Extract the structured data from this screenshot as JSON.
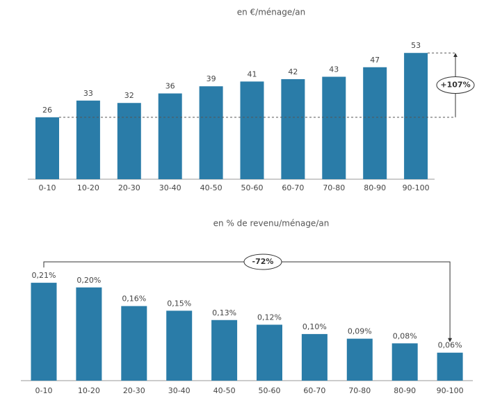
{
  "chart_data": [
    {
      "type": "bar",
      "title": "en €/ménage/an",
      "color": "#2a7ca8",
      "categories": [
        "0-10",
        "10-20",
        "20-30",
        "30-40",
        "40-50",
        "50-60",
        "60-70",
        "70-80",
        "80-90",
        "90-100"
      ],
      "values": [
        26,
        33,
        32,
        36,
        39,
        41,
        42,
        43,
        47,
        53
      ],
      "annotation": "+107%"
    },
    {
      "type": "bar",
      "title": "en % de revenu/ménage/an",
      "color": "#2a7ca8",
      "categories": [
        "0-10",
        "10-20",
        "20-30",
        "30-40",
        "40-50",
        "50-60",
        "60-70",
        "70-80",
        "80-90",
        "90-100"
      ],
      "values": [
        0.21,
        0.2,
        0.16,
        0.15,
        0.13,
        0.12,
        0.1,
        0.09,
        0.08,
        0.06
      ],
      "value_labels": [
        "0,21%",
        "0,20%",
        "0,16%",
        "0,15%",
        "0,13%",
        "0,12%",
        "0,10%",
        "0,09%",
        "0,08%",
        "0,06%"
      ],
      "annotation": "-72%"
    }
  ]
}
